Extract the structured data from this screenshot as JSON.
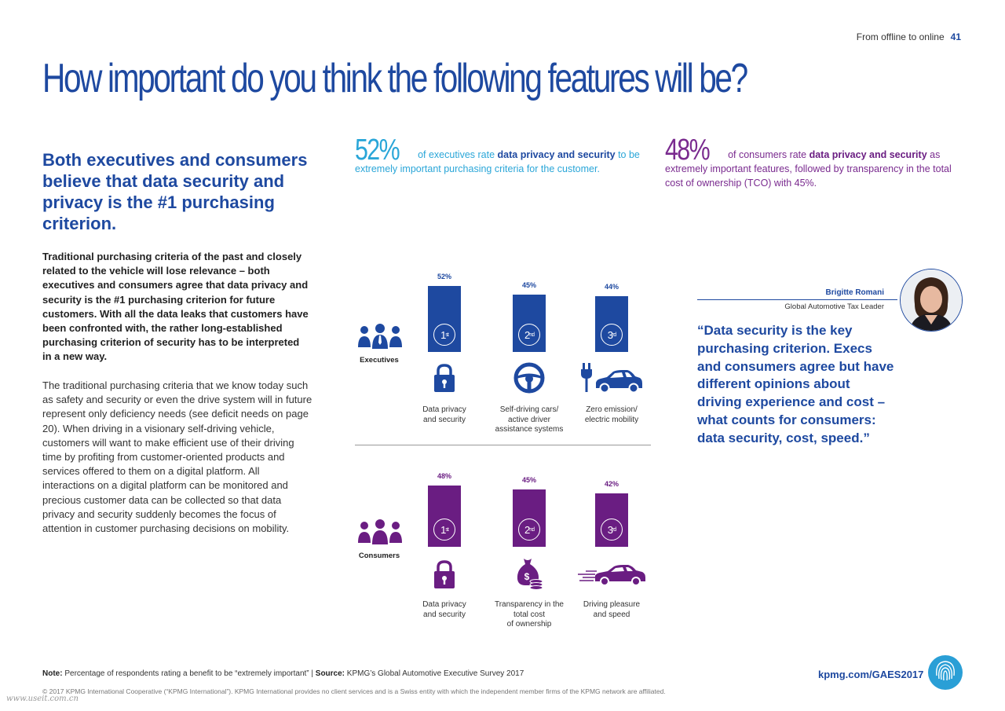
{
  "header": {
    "section": "From offline to online",
    "page_number": "41"
  },
  "title": "How important do you think the following features will be?",
  "lead": "Both executives and consumers believe that data security and privacy is the #1 purchasing criterion.",
  "bold_paragraph": "Traditional purchasing criteria of the past and closely related to the vehicle will lose relevance – both executives and consumers agree that data privacy and security is the #1 purchasing criterion for future customers. With all the data leaks that customers have been confronted with, the rather long-established purchasing criterion of security has to be interpreted in a new way.",
  "body_paragraph": "The traditional purchasing criteria that we know today such as safety and security or even the drive system will in future represent only deficiency needs (see deficit needs on page 20). When driving in a visionary self-driving vehicle, customers will want to make efficient use of their driving time by profiting from customer-oriented products and services offered to them on a digital platform. All interactions on a digital platform can be monitored and precious customer data can be collected so that data privacy and security suddenly becomes the focus of attention in customer purchasing decisions on mobility.",
  "stat_executives": {
    "value": "52%",
    "pre": "of executives rate ",
    "highlight": "data privacy and security",
    "post": " to be extremely important purchasing criteria for the customer."
  },
  "stat_consumers": {
    "value": "48%",
    "pre": "of consumers rate ",
    "highlight": "data privacy and security",
    "post": " as extremely important features, followed by transparency in the total cost of ownership (TCO) with 45%."
  },
  "colors": {
    "executives": "#1e49a0",
    "consumers": "#6a1d82",
    "accent": "#2aa6d8"
  },
  "chart_data": [
    {
      "type": "bar",
      "group": "Executives",
      "categories": [
        "Data privacy and security",
        "Self-driving cars/ active driver assistance systems",
        "Zero emission/ electric mobility"
      ],
      "category_lines": [
        [
          "Data privacy",
          "and security"
        ],
        [
          "Self-driving cars/",
          "active driver",
          "assistance systems"
        ],
        [
          "Zero emission/",
          "electric mobility"
        ]
      ],
      "values": [
        52,
        45,
        44
      ],
      "value_labels": [
        "52%",
        "45%",
        "44%"
      ],
      "ranks": [
        [
          "1",
          "st"
        ],
        [
          "2",
          "nd"
        ],
        [
          "3",
          "rd"
        ]
      ],
      "icons": [
        "lock-icon",
        "steering-wheel-icon",
        "electric-car-icon"
      ]
    },
    {
      "type": "bar",
      "group": "Consumers",
      "categories": [
        "Data privacy and security",
        "Transparency in the total cost of ownership",
        "Driving pleasure and speed"
      ],
      "category_lines": [
        [
          "Data privacy",
          "and security"
        ],
        [
          "Transparency in the",
          "total cost",
          "of ownership"
        ],
        [
          "Driving pleasure",
          "and speed"
        ]
      ],
      "values": [
        48,
        45,
        42
      ],
      "value_labels": [
        "48%",
        "45%",
        "42%"
      ],
      "ranks": [
        [
          "1",
          "st"
        ],
        [
          "2",
          "nd"
        ],
        [
          "3",
          "rd"
        ]
      ],
      "icons": [
        "lock-icon",
        "money-bag-icon",
        "fast-car-icon"
      ]
    }
  ],
  "quote": {
    "name": "Brigitte Romani",
    "role": "Global Automotive Tax Leader",
    "text": "“Data security is the key purchasing criterion. Execs and consumers agree but have different opinions about driving experience and cost – what counts for consumers: data security, cost, speed.”"
  },
  "footer": {
    "note_label": "Note:",
    "note_text": " Percentage of respondents rating a benefit to be “extremely important” | ",
    "source_label": "Source:",
    "source_text": " KPMG’s Global Automotive Executive Survey 2017",
    "copyright": "© 2017 KPMG International Cooperative (“KPMG International”). KPMG International provides no client services and is a Swiss entity with which the independent member firms of the KPMG network are affiliated.",
    "url": "kpmg.com/GAES2017",
    "watermark": "www.useit.com.cn"
  }
}
